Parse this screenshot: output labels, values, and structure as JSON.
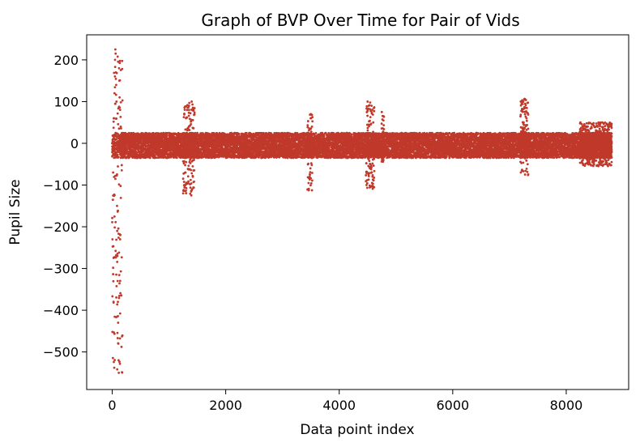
{
  "chart_data": {
    "type": "scatter",
    "title": "Graph of BVP Over Time for Pair of Vids",
    "xlabel": "Data point index",
    "ylabel": "Pupil Size",
    "xlim": [
      -450,
      9100
    ],
    "ylim": [
      -590,
      260
    ],
    "xticks": [
      0,
      2000,
      4000,
      6000,
      8000
    ],
    "yticks": [
      200,
      100,
      0,
      -100,
      -200,
      -300,
      -400,
      -500
    ],
    "grid": false,
    "point_color": "#c0392b",
    "n_points": 8800,
    "points_note_values": {
      "x_min": 0,
      "x_max": 8800,
      "y_min": -550,
      "y_max": 225
    },
    "points": [
      [
        0,
        0
      ],
      [
        10,
        5
      ],
      [
        20,
        -3
      ],
      [
        30,
        60
      ],
      [
        40,
        120
      ],
      [
        50,
        200
      ],
      [
        55,
        225
      ],
      [
        60,
        215
      ],
      [
        65,
        170
      ],
      [
        70,
        140
      ],
      [
        75,
        100
      ],
      [
        80,
        -30
      ],
      [
        85,
        -150
      ],
      [
        88,
        -210
      ],
      [
        92,
        -270
      ],
      [
        96,
        -330
      ],
      [
        100,
        -380
      ],
      [
        104,
        -430
      ],
      [
        108,
        -480
      ],
      [
        112,
        -520
      ],
      [
        116,
        -550
      ],
      [
        120,
        180
      ],
      [
        125,
        150
      ],
      [
        130,
        110
      ],
      [
        140,
        80
      ],
      [
        150,
        40
      ],
      [
        160,
        20
      ],
      [
        1250,
        -120
      ],
      [
        1270,
        -100
      ],
      [
        1290,
        -70
      ],
      [
        1300,
        60
      ],
      [
        1320,
        80
      ],
      [
        1350,
        40
      ],
      [
        1400,
        100
      ],
      [
        1420,
        -80
      ],
      [
        1440,
        -40
      ],
      [
        3450,
        -110
      ],
      [
        3480,
        -80
      ],
      [
        3500,
        70
      ],
      [
        3520,
        40
      ],
      [
        4480,
        -100
      ],
      [
        4500,
        100
      ],
      [
        4520,
        90
      ],
      [
        4540,
        -60
      ],
      [
        4600,
        50
      ],
      [
        4750,
        75
      ],
      [
        4780,
        -40
      ],
      [
        7200,
        -70
      ],
      [
        7250,
        50
      ],
      [
        7280,
        105
      ],
      [
        7300,
        60
      ],
      [
        7320,
        -50
      ],
      [
        8250,
        50
      ],
      [
        8300,
        -50
      ],
      [
        8400,
        30
      ],
      [
        8500,
        -40
      ],
      [
        8600,
        25
      ],
      [
        8700,
        -45
      ],
      [
        8780,
        20
      ]
    ],
    "band": {
      "x_start": 150,
      "x_end": 8800,
      "y_low": -35,
      "y_high": 25
    }
  }
}
